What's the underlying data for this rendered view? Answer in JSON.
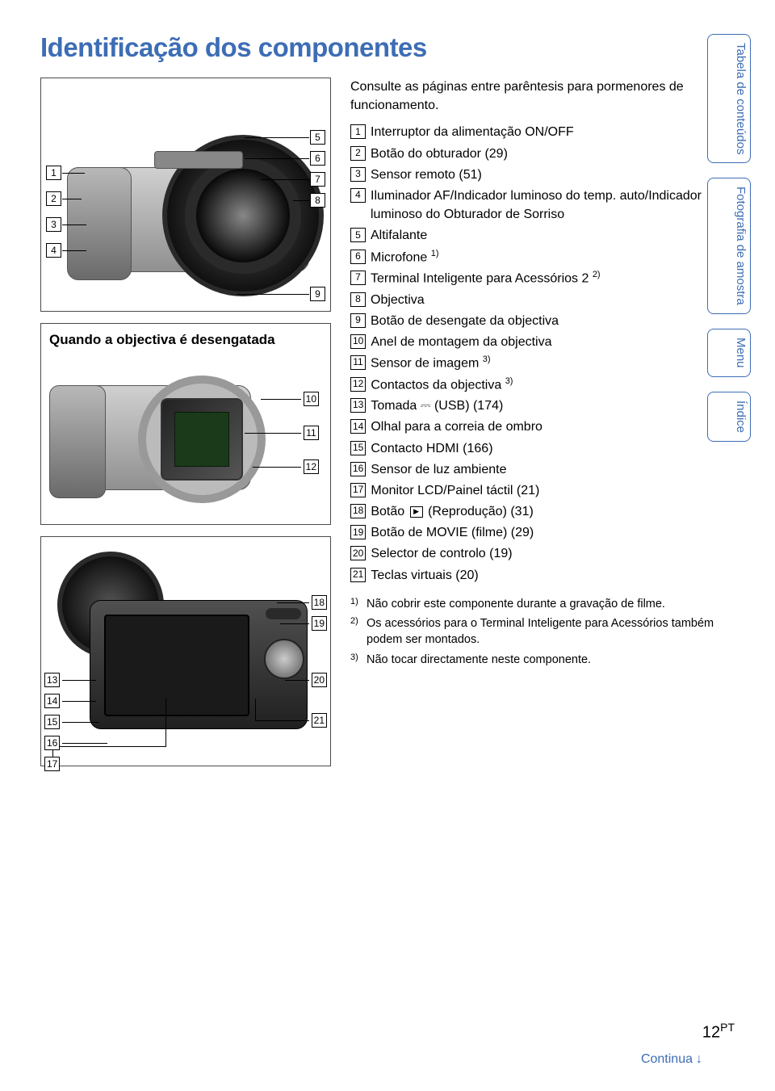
{
  "title": "Identificação dos componentes",
  "intro": "Consulte as páginas entre parêntesis para pormenores de funcionamento.",
  "components": [
    {
      "n": "1",
      "text": "Interruptor da alimentação ON/OFF"
    },
    {
      "n": "2",
      "text": "Botão do obturador (29)"
    },
    {
      "n": "3",
      "text": "Sensor remoto (51)"
    },
    {
      "n": "4",
      "text": "Iluminador AF/Indicador luminoso do temp. auto/Indicador luminoso do Obturador de Sorriso"
    },
    {
      "n": "5",
      "text": "Altifalante"
    },
    {
      "n": "6",
      "text": "Microfone",
      "sup": "1)"
    },
    {
      "n": "7",
      "text": "Terminal Inteligente para Acessórios 2",
      "sup": "2)"
    },
    {
      "n": "8",
      "text": "Objectiva"
    },
    {
      "n": "9",
      "text": "Botão de desengate da objectiva"
    },
    {
      "n": "10",
      "text": "Anel de montagem da objectiva"
    },
    {
      "n": "11",
      "text": "Sensor de imagem",
      "sup": "3)"
    },
    {
      "n": "12",
      "text": "Contactos da objectiva",
      "sup": "3)"
    },
    {
      "n": "13",
      "text": "Tomada",
      "usb": true,
      "text2": "(USB) (174)"
    },
    {
      "n": "14",
      "text": "Olhal para a correia de ombro"
    },
    {
      "n": "15",
      "text": "Contacto HDMI (166)"
    },
    {
      "n": "16",
      "text": "Sensor de luz ambiente"
    },
    {
      "n": "17",
      "text": "Monitor LCD/Painel táctil (21)"
    },
    {
      "n": "18",
      "text": "Botão",
      "play": true,
      "text2": "(Reprodução) (31)"
    },
    {
      "n": "19",
      "text": "Botão de MOVIE (filme) (29)"
    },
    {
      "n": "20",
      "text": "Selector de controlo (19)"
    },
    {
      "n": "21",
      "text": "Teclas virtuais (20)"
    }
  ],
  "footnotes": [
    {
      "mark": "1)",
      "text": "Não cobrir este componente durante a gravação de filme."
    },
    {
      "mark": "2)",
      "text": "Os acessórios para o Terminal Inteligente para Acessórios também podem ser montados."
    },
    {
      "mark": "3)",
      "text": "Não tocar directamente neste componente."
    }
  ],
  "fig2_caption": "Quando a objectiva é desengatada",
  "tabs": [
    "Tabela de conteúdos",
    "Fotografia de amostra",
    "Menu",
    "Índice"
  ],
  "page_number": "12",
  "page_suffix": "PT",
  "continue_label": "Continua",
  "colors": {
    "accent": "#3d6db5",
    "text": "#000000",
    "bg": "#ffffff",
    "camera_light": "#d0d0d0",
    "camera_dark": "#909090",
    "lens": "#111111"
  }
}
